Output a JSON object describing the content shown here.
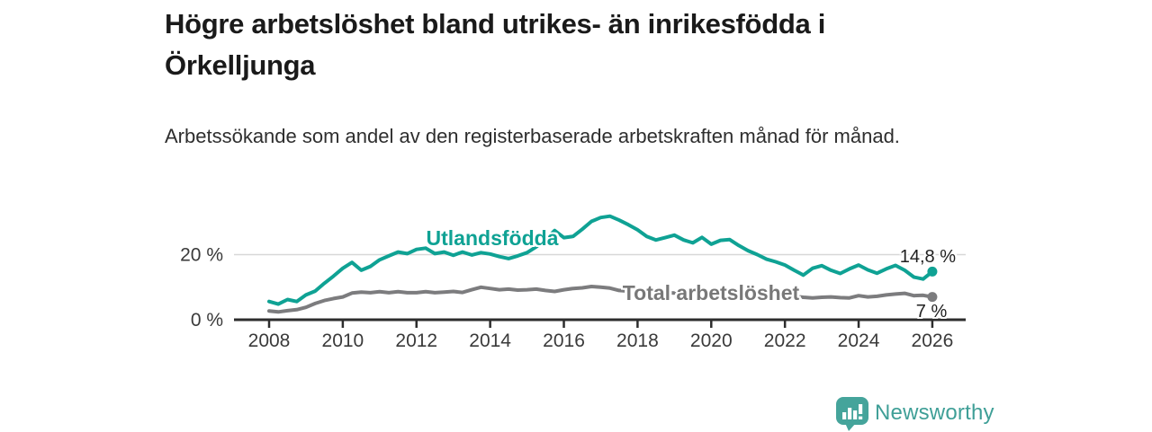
{
  "title": "Högre arbetslöshet bland utrikes- än inrikesfödda i Örkelljunga",
  "subtitle": "Arbetssökande som andel av den registerbaserade arbetskraften månad för månad.",
  "branding": {
    "name": "Newsworthy",
    "logo_icon": "bar-chart-speech-bubble-icon",
    "color": "#45a49b"
  },
  "colors": {
    "accent_teal": "#0fa294",
    "line_gray": "#7c7c7e",
    "axis": "#2d2d2d",
    "gridline": "#d7d7d7",
    "tick_text": "#3a3a3a"
  },
  "chart_data": {
    "type": "line",
    "title": "Högre arbetslöshet bland utrikes- än inrikesfödda i Örkelljunga",
    "subtitle": "Arbetssökande som andel av den registerbaserade arbetskraften månad för månad.",
    "unit": "%",
    "x_start": 2008,
    "x_step": 0.25,
    "xlim": [
      2007.0,
      2026.9
    ],
    "ylim": [
      0,
      34.5
    ],
    "grid": "single horizontal gridline at y=20",
    "legend_position": "inline-labels-on-lines",
    "x_ticks": [
      "2008",
      "2010",
      "2012",
      "2014",
      "2016",
      "2018",
      "2020",
      "2022",
      "2024",
      "2026"
    ],
    "y_ticks": [
      {
        "value": 0,
        "label": "0 %"
      },
      {
        "value": 20,
        "label": "20 %"
      }
    ],
    "series": [
      {
        "name": "Utlandsfödda",
        "color": "#0fa294",
        "end_label": "14,8 %",
        "end_value": 14.8,
        "values": [
          5.6,
          4.8,
          6.2,
          5.6,
          7.6,
          8.8,
          11.2,
          13.4,
          15.8,
          17.6,
          15.2,
          16.4,
          18.4,
          19.6,
          20.8,
          20.3,
          21.6,
          22.0,
          20.3,
          20.8,
          19.8,
          20.8,
          19.9,
          20.6,
          20.2,
          19.4,
          18.8,
          19.6,
          20.6,
          22.4,
          24.6,
          27.4,
          25.2,
          25.6,
          27.8,
          30.2,
          31.4,
          31.8,
          30.6,
          29.2,
          27.6,
          25.6,
          24.5,
          25.2,
          26.0,
          24.5,
          23.6,
          25.3,
          23.2,
          24.4,
          24.6,
          22.8,
          21.2,
          20.0,
          18.6,
          17.8,
          16.8,
          15.2,
          13.7,
          15.8,
          16.6,
          15.2,
          14.2,
          15.6,
          16.8,
          15.3,
          14.3,
          15.6,
          16.7,
          15.2,
          13.1,
          12.5,
          14.8
        ]
      },
      {
        "name": "Total arbetslöshet",
        "color": "#7c7c7e",
        "end_label": "7 %",
        "end_value": 7.0,
        "values": [
          2.7,
          2.4,
          2.8,
          3.1,
          3.8,
          5.0,
          5.9,
          6.5,
          7.0,
          8.2,
          8.5,
          8.3,
          8.6,
          8.3,
          8.6,
          8.3,
          8.3,
          8.6,
          8.3,
          8.5,
          8.7,
          8.4,
          9.2,
          10.0,
          9.6,
          9.2,
          9.4,
          9.1,
          9.2,
          9.4,
          9.0,
          8.7,
          9.2,
          9.6,
          9.8,
          10.2,
          10.0,
          9.7,
          9.0,
          8.8,
          8.7,
          8.5,
          8.4,
          8.3,
          8.2,
          8.0,
          7.9,
          8.0,
          8.2,
          8.8,
          9.0,
          8.8,
          8.5,
          8.2,
          7.9,
          7.6,
          7.4,
          7.2,
          6.9,
          6.7,
          6.9,
          7.0,
          6.8,
          6.7,
          7.4,
          7.0,
          7.2,
          7.6,
          7.9,
          8.1,
          7.4,
          7.5,
          7.0
        ]
      }
    ]
  }
}
